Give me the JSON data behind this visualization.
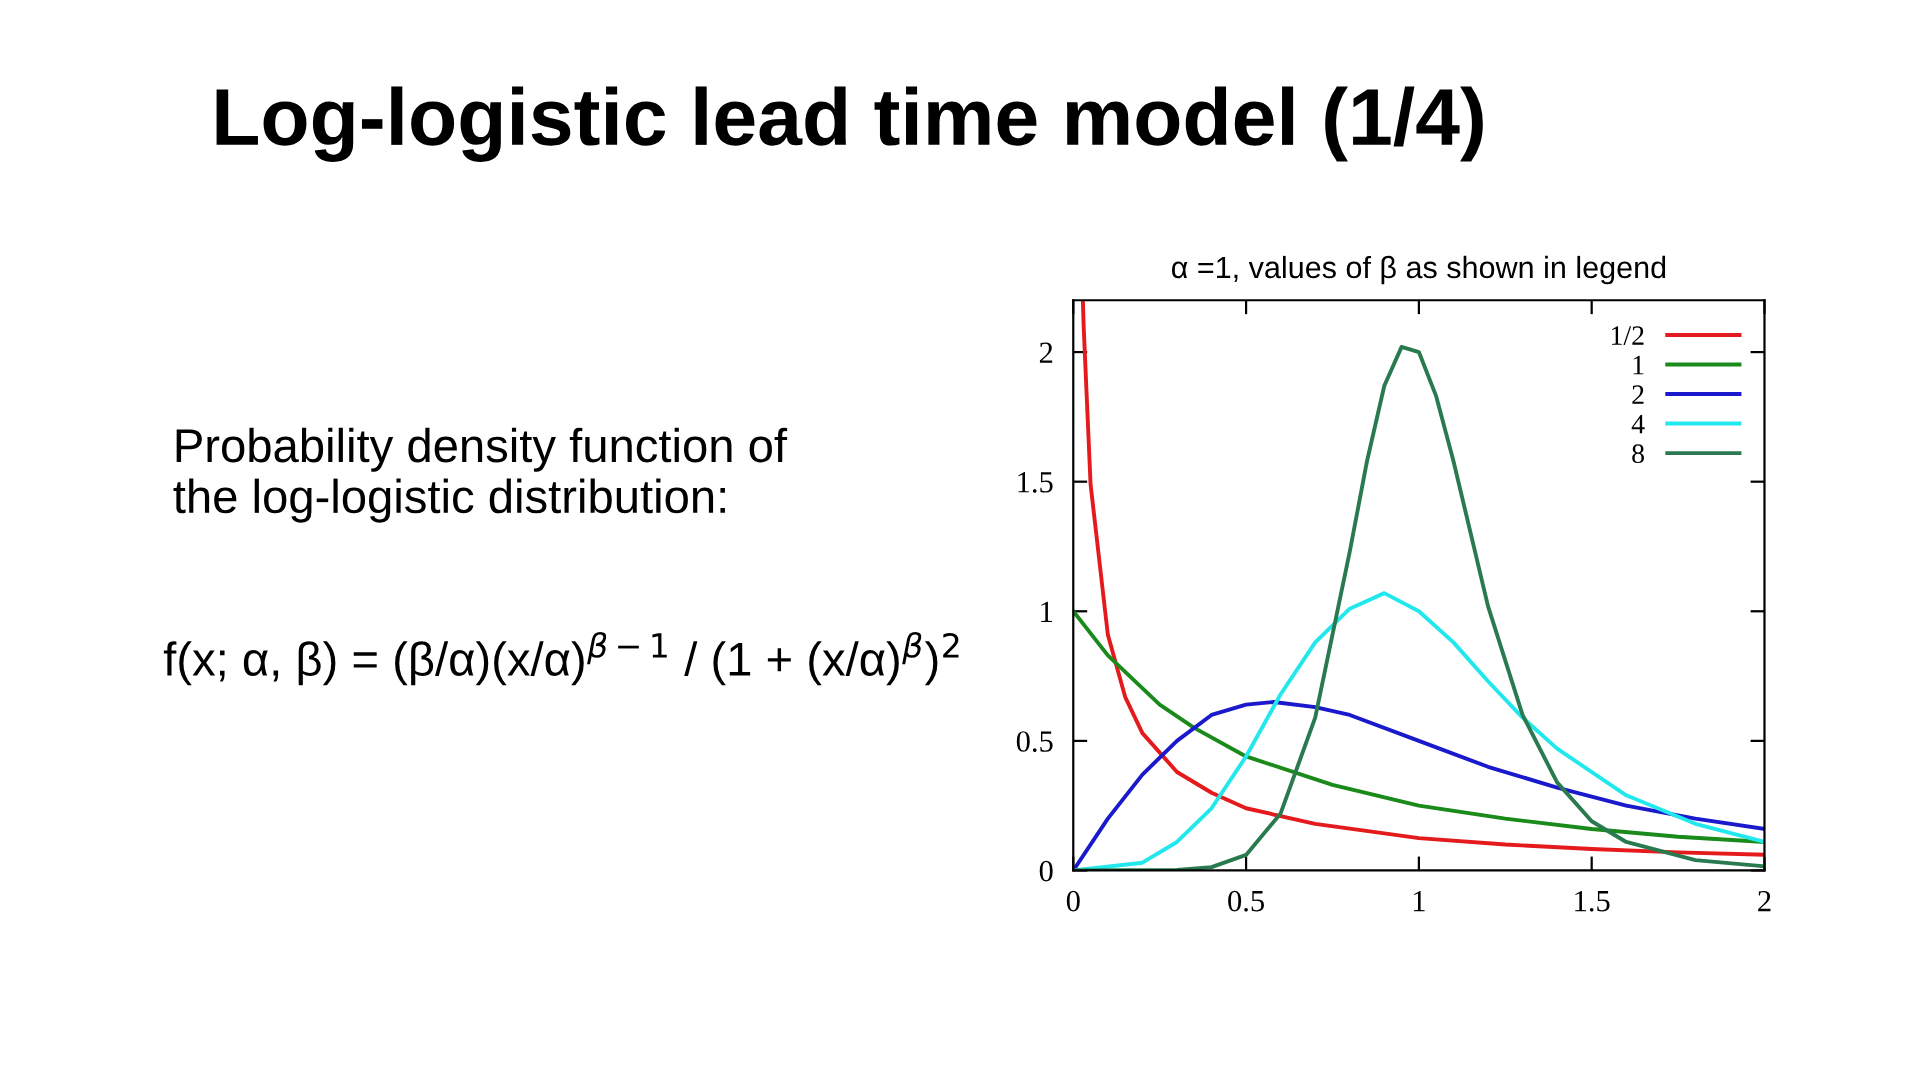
{
  "chart_data": {
    "type": "line",
    "title": "Log-logistic lead time model (1/4)",
    "subtitle": "α =1, values of β as shown in legend",
    "annotations": [
      "Probability density function of\nthe log-logistic distribution:",
      "f(x; α, β) = (β/α)(x/α)$^{β−1}$ / (1 + (x/α)$^{β}$)$^{2}$"
    ],
    "series": [
      {
        "name": "1/2",
        "color": "#e41a1c",
        "x": [
          0.028,
          0.03,
          0.05,
          0.1,
          0.15,
          0.2,
          0.3,
          0.4,
          0.5,
          0.7,
          1,
          1.25,
          1.5,
          1.75,
          2
        ],
        "values": [
          2.19,
          2.1,
          1.49,
          0.91,
          0.67,
          0.53,
          0.38,
          0.3,
          0.24,
          0.18,
          0.125,
          0.1,
          0.083,
          0.07,
          0.061
        ]
      },
      {
        "name": "1",
        "color": "#1a8a1a",
        "x": [
          0,
          0.1,
          0.25,
          0.35,
          0.5,
          0.75,
          1,
          1.25,
          1.5,
          1.75,
          2
        ],
        "values": [
          1,
          0.83,
          0.64,
          0.55,
          0.44,
          0.33,
          0.25,
          0.2,
          0.16,
          0.13,
          0.11
        ]
      },
      {
        "name": "2",
        "color": "#1a1acc",
        "x": [
          0,
          0.1,
          0.2,
          0.3,
          0.4,
          0.5,
          0.58,
          0.7,
          0.8,
          1,
          1.2,
          1.4,
          1.6,
          1.8,
          2
        ],
        "values": [
          0,
          0.2,
          0.37,
          0.5,
          0.6,
          0.64,
          0.65,
          0.63,
          0.6,
          0.5,
          0.4,
          0.32,
          0.25,
          0.2,
          0.16
        ]
      },
      {
        "name": "4",
        "color": "#22e8ee",
        "x": [
          0,
          0.2,
          0.3,
          0.4,
          0.5,
          0.6,
          0.7,
          0.8,
          0.9,
          1,
          1.1,
          1.2,
          1.3,
          1.4,
          1.6,
          1.8,
          2
        ],
        "values": [
          0,
          0.03,
          0.11,
          0.24,
          0.44,
          0.68,
          0.88,
          1.01,
          1.07,
          1,
          0.88,
          0.73,
          0.59,
          0.47,
          0.29,
          0.18,
          0.11
        ]
      },
      {
        "name": "8",
        "color": "#2a7a50",
        "x": [
          0,
          0.3,
          0.4,
          0.5,
          0.6,
          0.7,
          0.8,
          0.85,
          0.9,
          0.95,
          1,
          1.05,
          1.1,
          1.2,
          1.3,
          1.4,
          1.5,
          1.6,
          1.8,
          2
        ],
        "values": [
          0,
          0.002,
          0.013,
          0.06,
          0.22,
          0.59,
          1.23,
          1.58,
          1.87,
          2.02,
          2,
          1.83,
          1.58,
          1.02,
          0.6,
          0.34,
          0.19,
          0.11,
          0.04,
          0.016
        ]
      }
    ],
    "xlim": [
      0,
      2
    ],
    "ylim": [
      0,
      2.2
    ],
    "xticks": [
      0,
      0.5,
      1,
      1.5,
      2
    ],
    "yticks": [
      0,
      0.5,
      1,
      1.5,
      2
    ],
    "legend": "top right",
    "grid": false,
    "marker": "none",
    "line_style": "solid"
  }
}
